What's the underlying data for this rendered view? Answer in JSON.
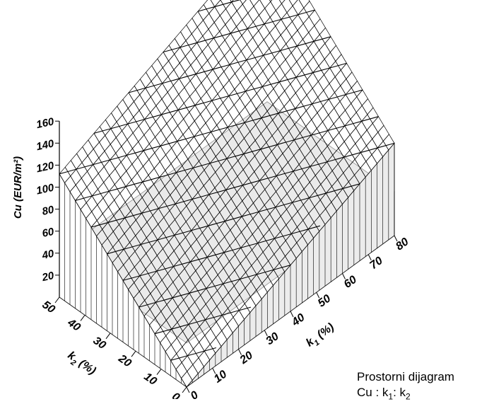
{
  "caption": {
    "line1": "Prostorni dijagram",
    "line2_prefix": "Cu : k",
    "line2_sub1": "1",
    "line2_mid": ": k",
    "line2_sub2": "2"
  },
  "chart_data": {
    "type": "surface3d",
    "title": "",
    "zlabel": "Cu  (EUR/m²)",
    "xlabel": "k1 (%)",
    "ylabel": "k2 (%)",
    "x_axis": {
      "name": "k",
      "sub": "1",
      "unit": " (%)",
      "range": [
        0,
        80
      ],
      "ticks": [
        0,
        10,
        20,
        30,
        40,
        50,
        60,
        70,
        80
      ]
    },
    "y_axis": {
      "name": "k",
      "sub": "2",
      "unit": " (%)",
      "range": [
        0,
        50
      ],
      "ticks": [
        0,
        10,
        20,
        30,
        40,
        50
      ]
    },
    "z_axis": {
      "range": [
        0,
        160
      ],
      "ticks": [
        20,
        40,
        60,
        80,
        100,
        120,
        140,
        160
      ]
    },
    "grid": {
      "k1_divisions": 36,
      "k2_divisions": 24
    },
    "surface_points": [
      {
        "k1": 0,
        "k2": 0,
        "Cu": 0
      },
      {
        "k1": 80,
        "k2": 0,
        "Cu": 84
      },
      {
        "k1": 0,
        "k2": 50,
        "Cu": 112
      },
      {
        "k1": 80,
        "k2": 50,
        "Cu": 196
      }
    ],
    "base_plane_height": 40
  }
}
